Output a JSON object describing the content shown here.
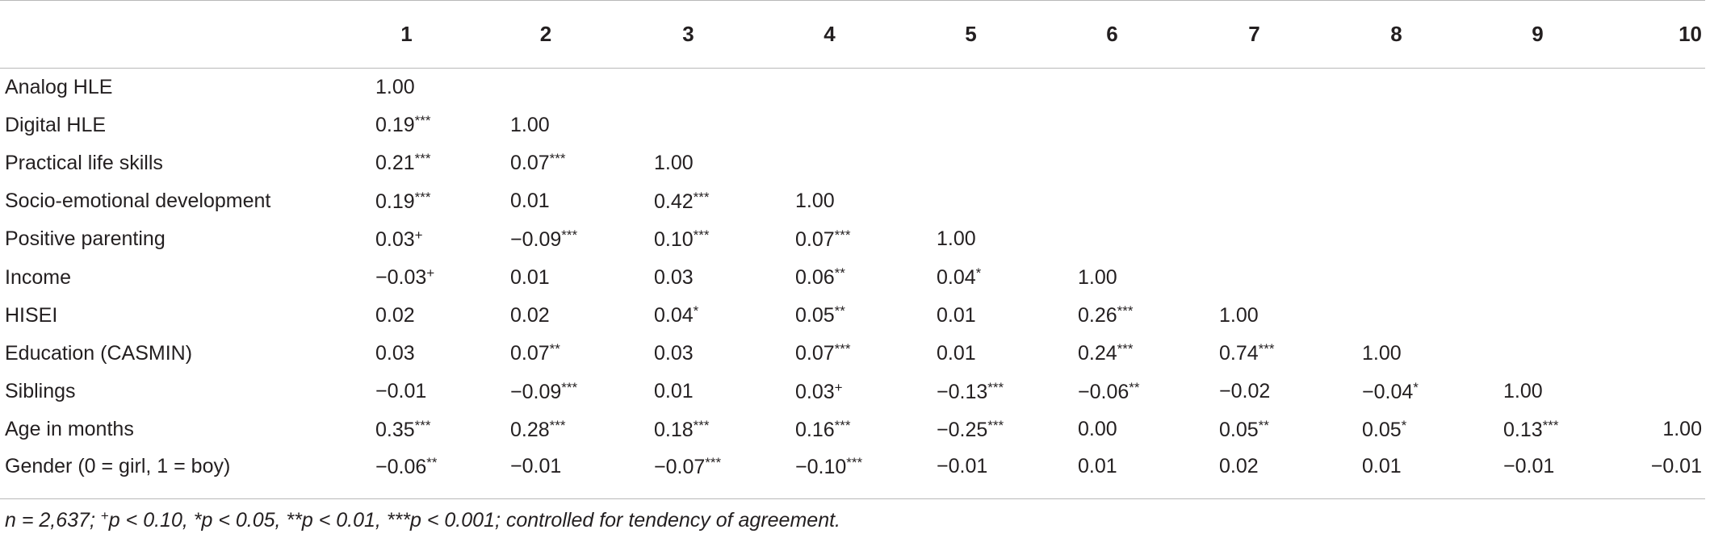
{
  "table": {
    "headers": [
      "",
      "1",
      "2",
      "3",
      "4",
      "5",
      "6",
      "7",
      "8",
      "9",
      "10"
    ],
    "rows": [
      {
        "label": "Analog HLE",
        "values": [
          "1.00",
          "",
          "",
          "",
          "",
          "",
          "",
          "",
          "",
          ""
        ]
      },
      {
        "label": "Digital HLE",
        "values": [
          "0.19***",
          "1.00",
          "",
          "",
          "",
          "",
          "",
          "",
          "",
          ""
        ]
      },
      {
        "label": "Practical life skills",
        "values": [
          "0.21***",
          "0.07***",
          "1.00",
          "",
          "",
          "",
          "",
          "",
          "",
          ""
        ]
      },
      {
        "label": "Socio-emotional development",
        "values": [
          "0.19***",
          "0.01",
          "0.42***",
          "1.00",
          "",
          "",
          "",
          "",
          "",
          ""
        ]
      },
      {
        "label": "Positive parenting",
        "values": [
          "0.03+",
          "−0.09***",
          "0.10***",
          "0.07***",
          "1.00",
          "",
          "",
          "",
          "",
          ""
        ]
      },
      {
        "label": "Income",
        "values": [
          "−0.03+",
          "0.01",
          "0.03",
          "0.06**",
          "0.04*",
          "1.00",
          "",
          "",
          "",
          ""
        ]
      },
      {
        "label": "HISEI",
        "values": [
          "0.02",
          "0.02",
          "0.04*",
          "0.05**",
          "0.01",
          "0.26***",
          "1.00",
          "",
          "",
          ""
        ]
      },
      {
        "label": "Education (CASMIN)",
        "values": [
          "0.03",
          "0.07**",
          "0.03",
          "0.07***",
          "0.01",
          "0.24***",
          "0.74***",
          "1.00",
          "",
          ""
        ]
      },
      {
        "label": "Siblings",
        "values": [
          "−0.01",
          "−0.09***",
          "0.01",
          "0.03+",
          "−0.13***",
          "−0.06**",
          "−0.02",
          "−0.04*",
          "1.00",
          ""
        ]
      },
      {
        "label": "Age in months",
        "values": [
          "0.35***",
          "0.28***",
          "0.18***",
          "0.16***",
          "−0.25***",
          "0.00",
          "0.05**",
          "0.05*",
          "0.13***",
          "1.00"
        ]
      },
      {
        "label": "Gender (0 = girl, 1 = boy)",
        "values": [
          "−0.06**",
          "−0.01",
          "−0.07***",
          "−0.10***",
          "−0.01",
          "0.01",
          "0.02",
          "0.01",
          "−0.01",
          "−0.01"
        ]
      }
    ]
  },
  "footnote": {
    "part1": "n = 2,637; ",
    "sup1": "+",
    "part2": "p < 0.10, *p < 0.05, **p < 0.01, ***p < 0.001; controlled for tendency of agreement."
  }
}
